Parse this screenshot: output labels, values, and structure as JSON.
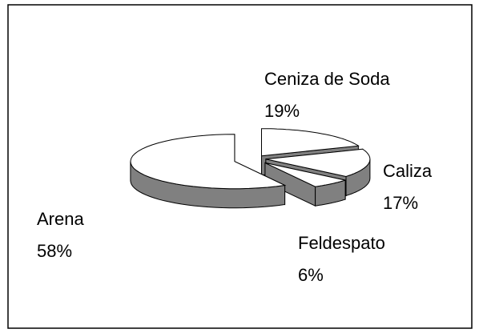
{
  "chart_data": {
    "type": "pie",
    "categories": [
      "Ceniza de Soda",
      "Caliza",
      "Feldespato",
      "Arena"
    ],
    "values": [
      19,
      17,
      6,
      58
    ],
    "value_labels": [
      "19%",
      "17%",
      "6%",
      "58%"
    ],
    "color": "#ffffff",
    "side_color": "#808080"
  }
}
